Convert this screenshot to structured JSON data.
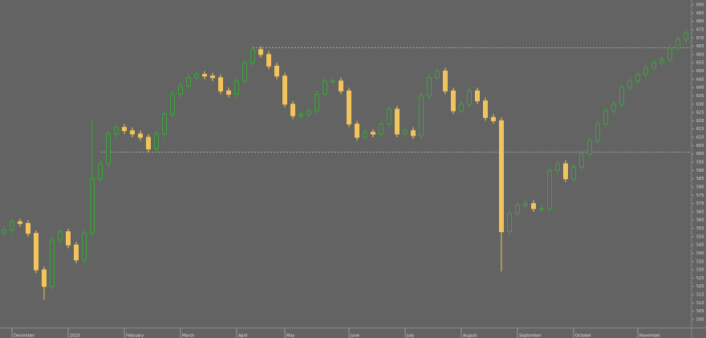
{
  "chart_data": {
    "type": "candlestick",
    "open": [
      552,
      554,
      559,
      558,
      552,
      530,
      520,
      548,
      553,
      545,
      536,
      552,
      585,
      594,
      612,
      616,
      614,
      612,
      610,
      603,
      612,
      624,
      636,
      641,
      646,
      648,
      647,
      646,
      638,
      636,
      644,
      655,
      663,
      660,
      653,
      647,
      630,
      623,
      624,
      626,
      636,
      644,
      644,
      638,
      618,
      610,
      613,
      612,
      618,
      627,
      612,
      614,
      611,
      635,
      646,
      650,
      638,
      626,
      630,
      638,
      632,
      622,
      620,
      553,
      564,
      569,
      570,
      567,
      567,
      590,
      594,
      585,
      592,
      600,
      608,
      618,
      626,
      630,
      640,
      644,
      648,
      652,
      655,
      657,
      664,
      669
    ],
    "high": [
      556,
      561,
      561,
      560,
      554,
      532,
      550,
      555,
      555,
      547,
      554,
      621,
      596,
      614,
      618,
      618,
      616,
      614,
      612,
      614,
      626,
      638,
      643,
      648,
      650,
      650,
      649,
      648,
      640,
      646,
      657,
      665,
      665,
      662,
      655,
      649,
      632,
      626,
      628,
      638,
      646,
      646,
      646,
      640,
      620,
      615,
      615,
      620,
      629,
      629,
      616,
      616,
      637,
      648,
      652,
      652,
      640,
      632,
      640,
      640,
      634,
      624,
      622,
      566,
      571,
      572,
      572,
      569,
      592,
      596,
      596,
      594,
      602,
      610,
      620,
      628,
      632,
      642,
      646,
      650,
      654,
      657,
      659,
      666,
      671,
      675
    ],
    "low": [
      550,
      552,
      556,
      550,
      528,
      512,
      518,
      546,
      543,
      534,
      534,
      550,
      583,
      592,
      610,
      612,
      610,
      608,
      601,
      601,
      610,
      622,
      634,
      639,
      644,
      645,
      644,
      636,
      634,
      634,
      642,
      653,
      658,
      651,
      645,
      628,
      621,
      621,
      622,
      624,
      634,
      642,
      636,
      616,
      608,
      608,
      610,
      610,
      616,
      610,
      610,
      609,
      609,
      633,
      644,
      636,
      624,
      624,
      628,
      630,
      620,
      618,
      529,
      551,
      562,
      567,
      565,
      565,
      565,
      588,
      583,
      583,
      590,
      598,
      606,
      616,
      624,
      628,
      638,
      642,
      646,
      650,
      653,
      655,
      662,
      667
    ],
    "close": [
      554,
      559,
      558,
      552,
      530,
      520,
      548,
      553,
      545,
      536,
      552,
      585,
      594,
      612,
      616,
      614,
      612,
      610,
      603,
      612,
      624,
      636,
      641,
      646,
      648,
      647,
      646,
      638,
      636,
      644,
      655,
      663,
      660,
      653,
      647,
      630,
      623,
      624,
      626,
      636,
      644,
      644,
      638,
      618,
      610,
      613,
      612,
      618,
      627,
      612,
      614,
      611,
      635,
      646,
      650,
      638,
      626,
      630,
      638,
      632,
      622,
      620,
      553,
      564,
      569,
      570,
      567,
      567,
      590,
      594,
      585,
      592,
      600,
      608,
      618,
      626,
      630,
      640,
      644,
      648,
      652,
      655,
      657,
      664,
      669,
      673
    ],
    "up_color": "#3aa53a",
    "down_color": "#f2c55c",
    "xlim": [
      0,
      86
    ],
    "xticks": [
      {
        "value": 1,
        "label": "December"
      },
      {
        "value": 8,
        "label": "2010"
      },
      {
        "value": 15,
        "label": "February"
      },
      {
        "value": 22,
        "label": "March"
      },
      {
        "value": 29,
        "label": "April"
      },
      {
        "value": 35,
        "label": "May"
      },
      {
        "value": 43,
        "label": "June"
      },
      {
        "value": 50,
        "label": "July"
      },
      {
        "value": 57,
        "label": "August"
      },
      {
        "value": 64,
        "label": "September"
      },
      {
        "value": 71,
        "label": "October"
      },
      {
        "value": 79,
        "label": "November"
      }
    ],
    "ylim": [
      500,
      690
    ],
    "yticks": [
      500,
      505,
      510,
      515,
      520,
      525,
      530,
      535,
      540,
      545,
      550,
      555,
      560,
      565,
      570,
      575,
      580,
      585,
      590,
      595,
      600,
      605,
      610,
      615,
      620,
      625,
      630,
      635,
      640,
      645,
      650,
      655,
      660,
      665,
      670,
      675,
      680,
      685,
      690
    ],
    "hlines": [
      {
        "value": 664,
        "from": 31
      },
      {
        "value": 601,
        "from": 12
      }
    ]
  }
}
